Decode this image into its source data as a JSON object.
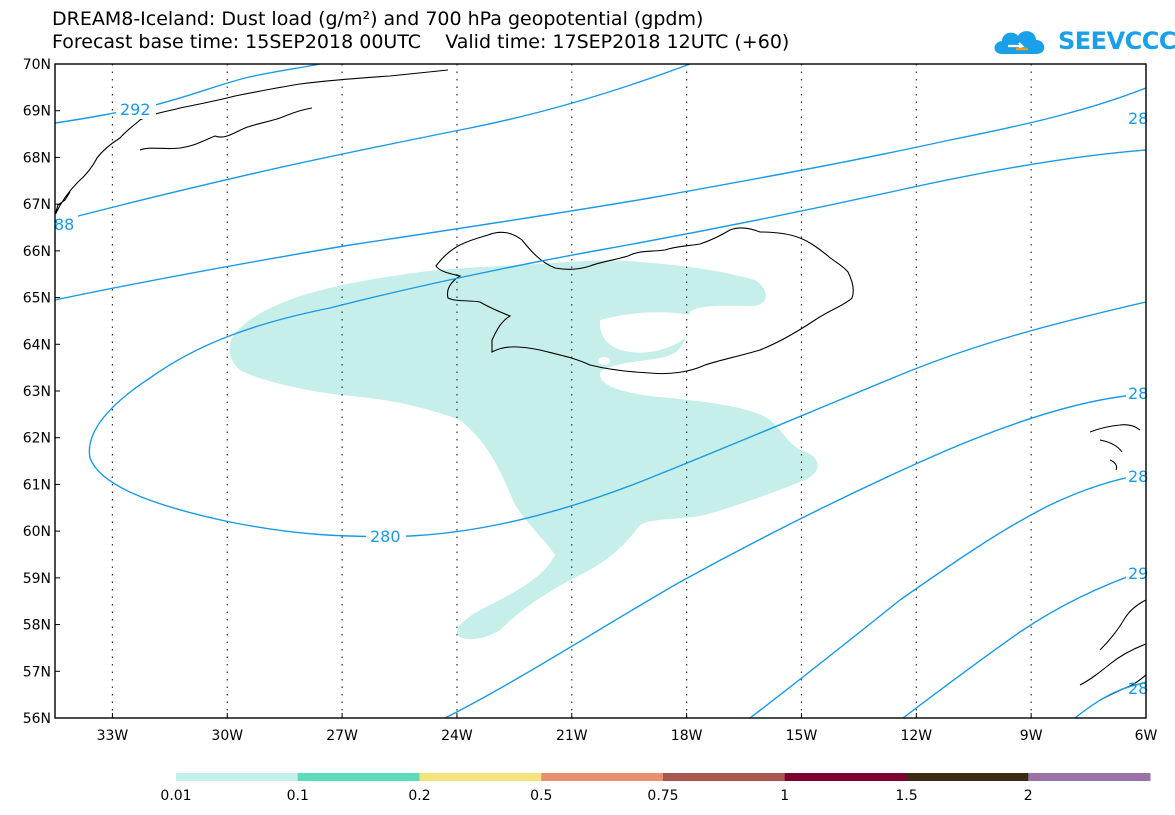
{
  "title_line1": "DREAM8-Iceland: Dust load (g/m²) and 700 hPa geopotential (gpdm)",
  "title_line2": "Forecast base time: 15SEP2018 00UTC    Valid time: 17SEP2018 12UTC (+60)",
  "logo_text": "SEEVCCC",
  "lat_labels": [
    "70N",
    "69N",
    "68N",
    "67N",
    "66N",
    "65N",
    "64N",
    "63N",
    "62N",
    "61N",
    "60N",
    "59N",
    "58N",
    "57N",
    "56N"
  ],
  "lon_labels": [
    "33W",
    "30W",
    "27W",
    "24W",
    "21W",
    "18W",
    "15W",
    "12W",
    "9W",
    "6W"
  ],
  "contour_labels": {
    "c292_left": "292",
    "c288_left": "88",
    "c280_mid": "280",
    "c28_r1": "28",
    "c28_r2": "28",
    "c28_r3": "28",
    "c29_r4": "29",
    "c28_r5": "28"
  },
  "colorbar": {
    "colors": [
      "#c6efea",
      "#5bdbb8",
      "#f5e37c",
      "#e98f6d",
      "#a7574d",
      "#7d0431",
      "#3d2a16",
      "#9b72a6"
    ],
    "labels": [
      "0.01",
      "0.1",
      "0.2",
      "0.5",
      "0.75",
      "1",
      "1.5",
      "2"
    ]
  },
  "colors": {
    "contour": "#1a9ae6",
    "dust_light": "#c6efea"
  }
}
